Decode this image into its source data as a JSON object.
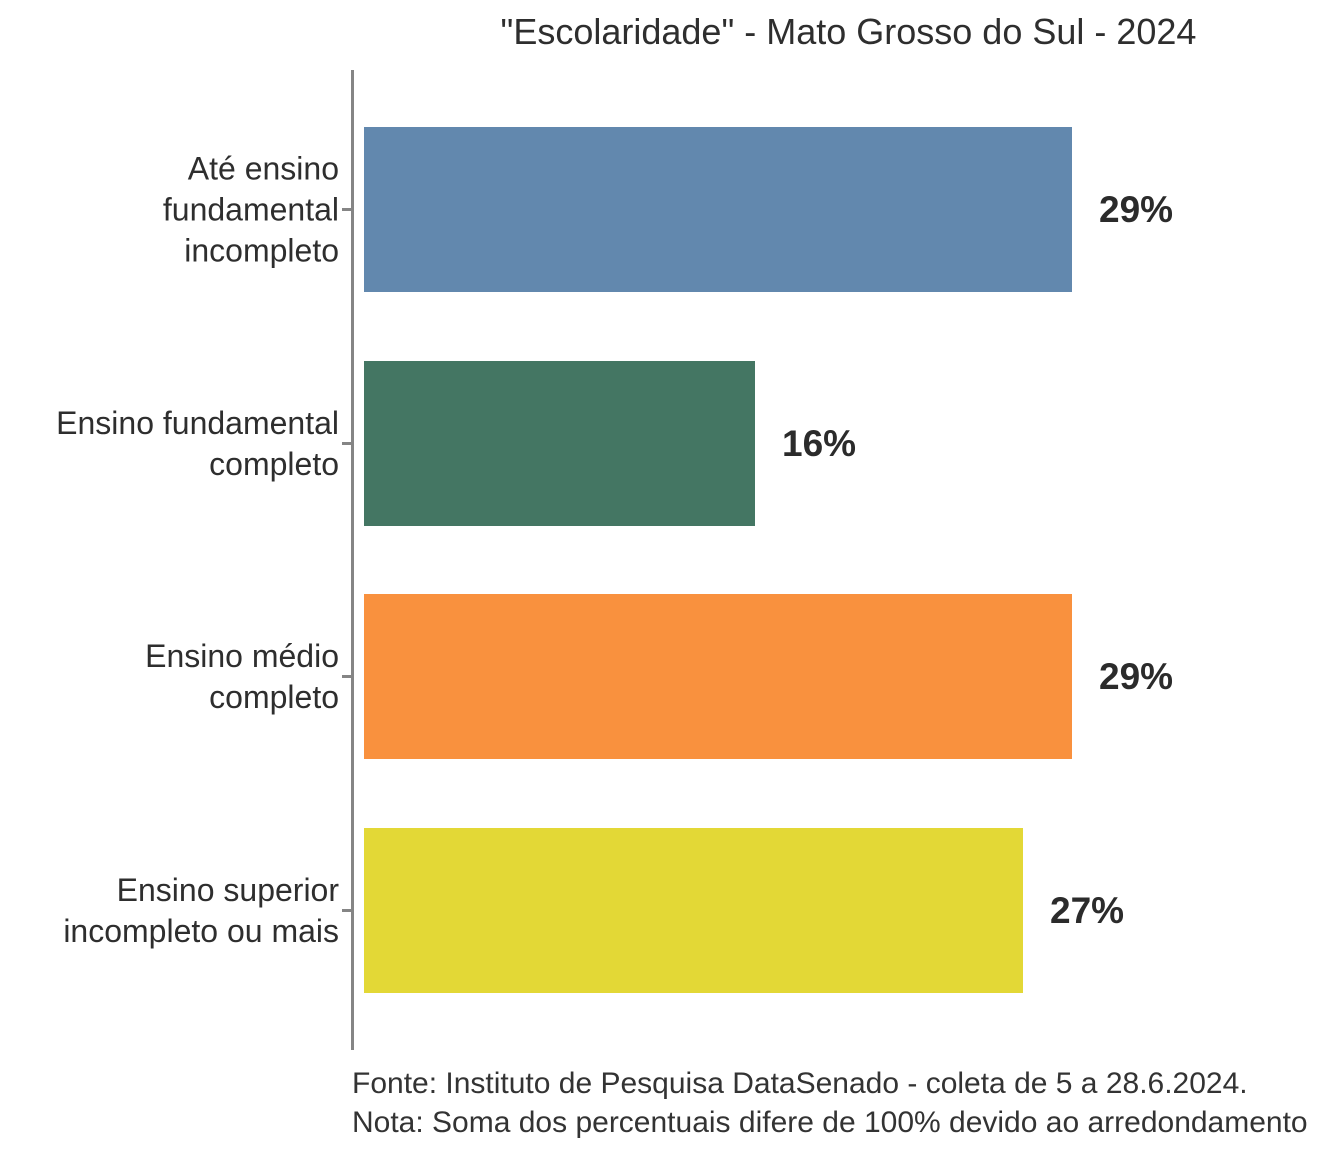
{
  "title": "\"Escolaridade\" - Mato Grosso do Sul - 2024",
  "chart_data": {
    "type": "bar",
    "orientation": "horizontal",
    "title": "\"Escolaridade\" - Mato Grosso do Sul - 2024",
    "categories": [
      "Até ensino fundamental incompleto",
      "Ensino fundamental completo",
      "Ensino médio completo",
      "Ensino superior incompleto ou mais"
    ],
    "categories_wrapped": [
      "Até ensino\nfundamental\nincompleto",
      "Ensino fundamental\ncompleto",
      "Ensino médio\ncompleto",
      "Ensino superior\nincompleto ou mais"
    ],
    "values": [
      29,
      16,
      29,
      27
    ],
    "value_labels": [
      "29%",
      "16%",
      "29%",
      "27%"
    ],
    "unit": "%",
    "xlim": [
      0,
      30
    ],
    "bar_colors": [
      "#6288AE",
      "#447663",
      "#F9913E",
      "#E3D836"
    ],
    "grid": false,
    "legend": "none",
    "x_axis_ticks": "none"
  },
  "footer": {
    "source": "Fonte: Instituto de Pesquisa DataSenado - coleta de 5 a 28.6.2024.",
    "note": "Nota: Soma dos percentuais difere de 100% devido ao arredondamento"
  },
  "colors": {
    "background": "#ffffff",
    "axis": "#858585",
    "text": "#2e2e2e",
    "value_text": "#2b2b2b"
  }
}
